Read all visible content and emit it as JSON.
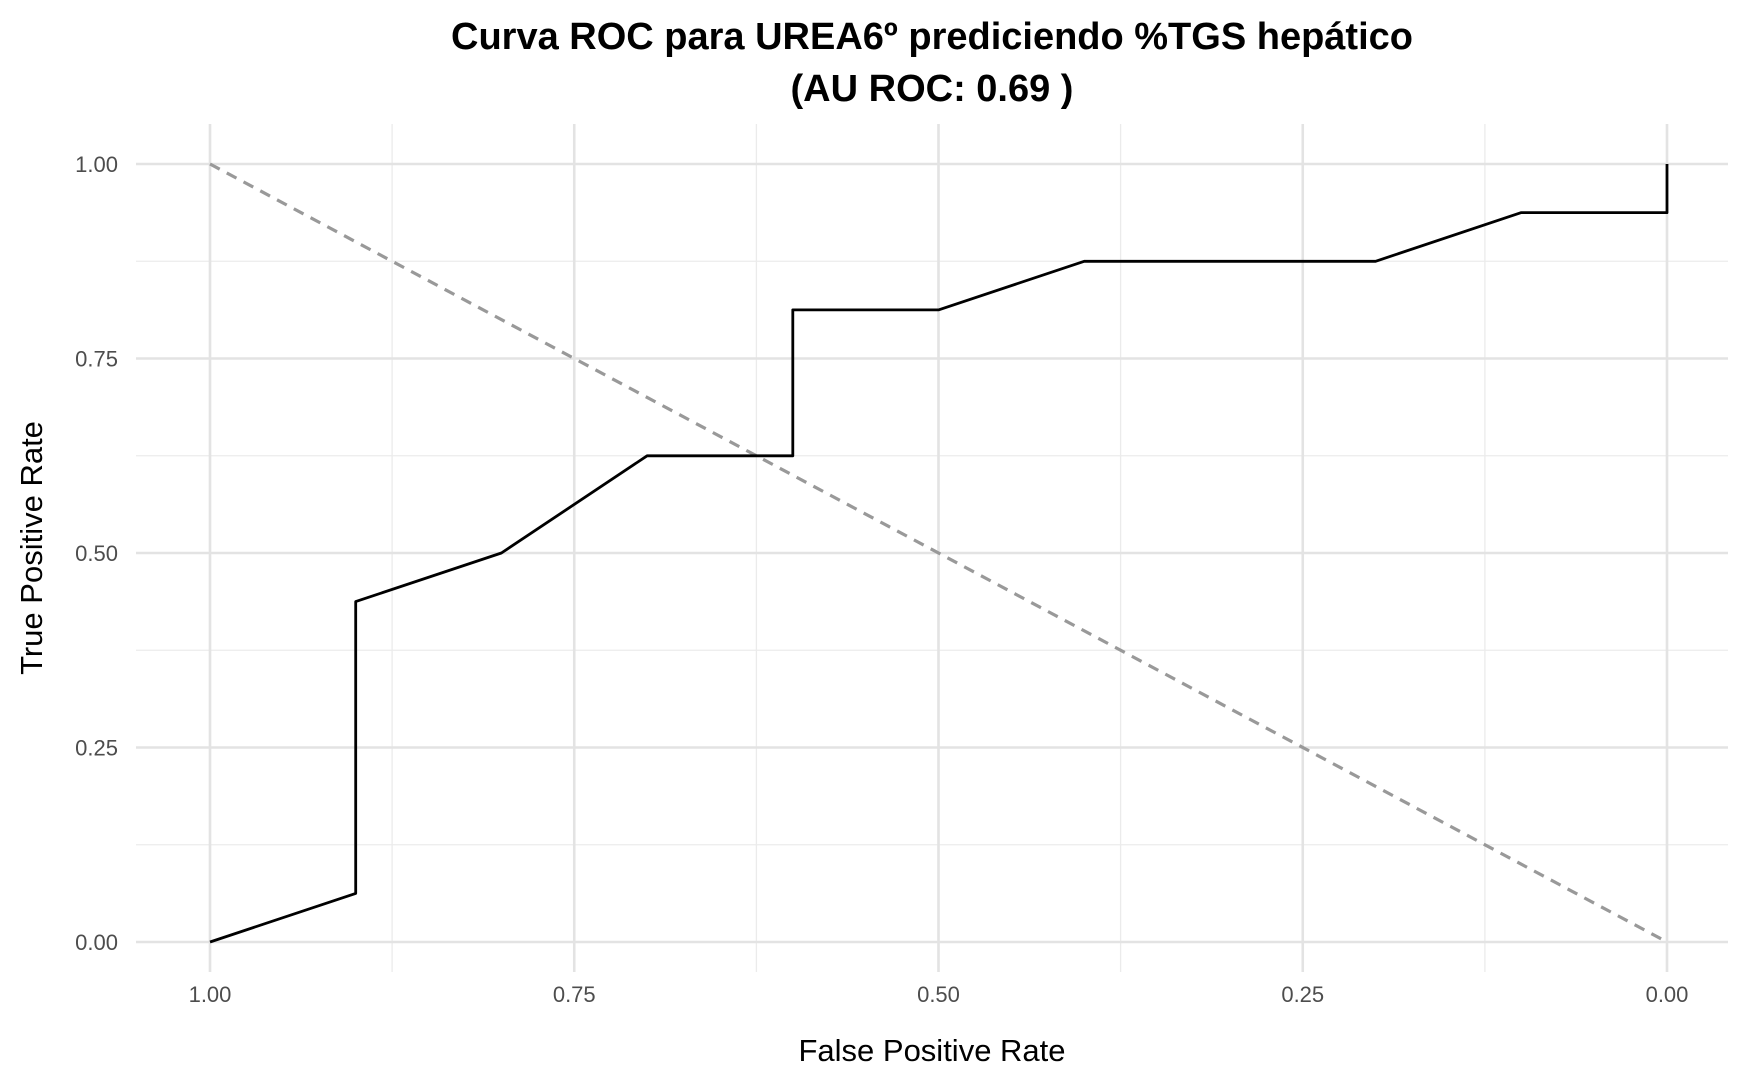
{
  "chart_data": {
    "type": "line",
    "title": "Curva ROC para UREA6º prediciendo %TGS hepático",
    "subtitle": "(AU ROC: 0.69 )",
    "xlabel": "False Positive Rate",
    "ylabel": "True Positive Rate",
    "x_reversed": true,
    "xlim": [
      1.0,
      0.0
    ],
    "ylim": [
      0.0,
      1.0
    ],
    "x_ticks": [
      "1.00",
      "0.75",
      "0.50",
      "0.25",
      "0.00"
    ],
    "y_ticks": [
      "0.00",
      "0.25",
      "0.50",
      "0.75",
      "1.00"
    ],
    "grid": true,
    "legend": "none",
    "series": [
      {
        "color": "#000000",
        "style": "solid",
        "x": [
          1.0,
          0.9,
          0.9,
          0.8,
          0.7,
          0.6,
          0.6,
          0.5,
          0.4,
          0.3,
          0.2,
          0.1,
          0.0,
          0.0
        ],
        "y": [
          0.0,
          0.0625,
          0.4375,
          0.5,
          0.625,
          0.625,
          0.8125,
          0.8125,
          0.875,
          0.875,
          0.875,
          0.9375,
          0.9375,
          1.0
        ]
      },
      {
        "color": "#999999",
        "style": "dashed",
        "x": [
          1.0,
          0.0
        ],
        "y": [
          1.0,
          0.0
        ]
      }
    ]
  }
}
